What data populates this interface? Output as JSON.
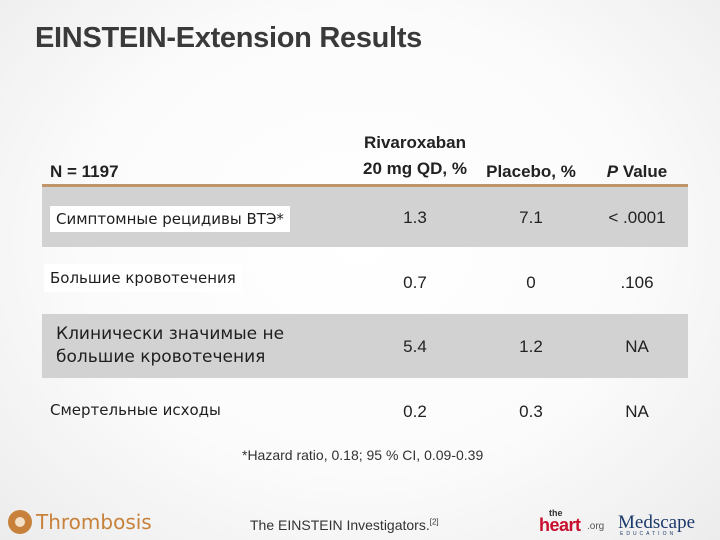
{
  "title": "EINSTEIN-Extension Results",
  "table": {
    "header": {
      "n": "N = 1197",
      "rivaroxaban_line1": "Rivaroxaban",
      "rivaroxaban_line2": "20 mg QD, %",
      "placebo": "Placebo, %",
      "p_italic": "P",
      "p_rest": " Value"
    },
    "rows": [
      {
        "label": "Симптомные рецидивы ВТЭ*",
        "rivaroxaban": "1.3",
        "placebo": "7.1",
        "p": "< .0001"
      },
      {
        "label": "Большие кровотечения",
        "rivaroxaban": "0.7",
        "placebo": "0",
        "p": ".106"
      },
      {
        "label": "Клинически значимые не большие кровотечения",
        "rivaroxaban": "5.4",
        "placebo": "1.2",
        "p": "NA"
      },
      {
        "label": "Смертельные исходы",
        "rivaroxaban": "0.2",
        "placebo": "0.3",
        "p": "NA"
      }
    ],
    "footnote": "*Hazard ratio, 0.18; 95 % CI, 0.09-0.39"
  },
  "footer": {
    "brand": "Thrombosis",
    "citation": "The EINSTEIN Investigators.",
    "citation_ref": "[2]",
    "logo_heart_the": "the",
    "logo_heart_word": "heart",
    "logo_heart_org": ".org",
    "logo_medscape": "Medscape",
    "logo_medscape_sub": "EDUCATION"
  },
  "colors": {
    "header_rule": "#c0956a",
    "band": "#d2d2d2",
    "brand": "#c7813a",
    "heart_red": "#c8102e",
    "medscape_blue": "#1c3a6b"
  }
}
